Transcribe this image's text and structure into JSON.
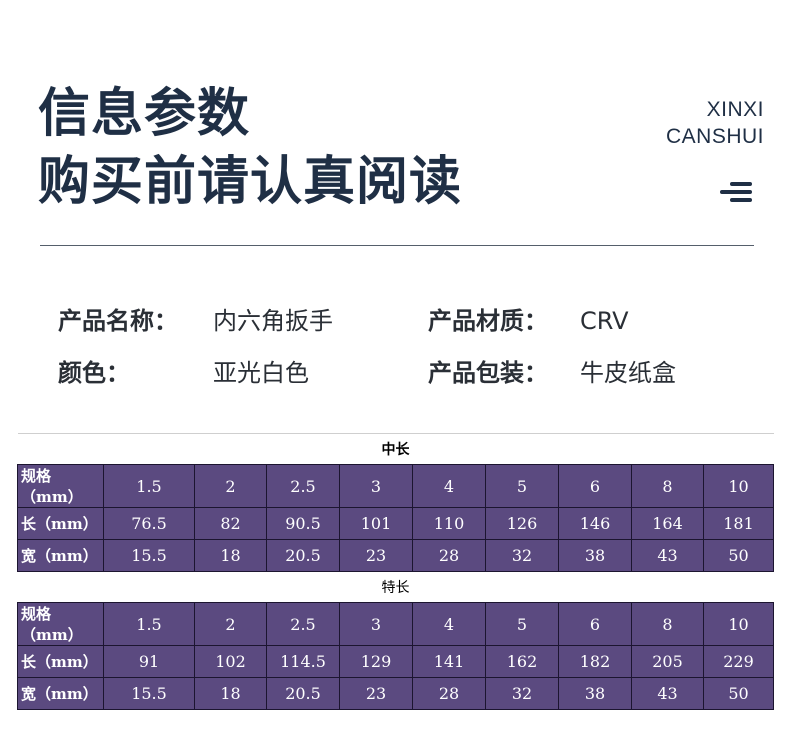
{
  "header": {
    "title_line1": "信息参数",
    "title_line2": "购买前请认真阅读",
    "en_line1": "XINXI",
    "en_line2": "CANSHUI",
    "menu_icon": "menu-lines-icon"
  },
  "info": {
    "name_label": "产品名称：",
    "name_value": "内六角扳手",
    "material_label": "产品材质：",
    "material_value": "CRV",
    "color_label": "颜色：",
    "color_value": "亚光白色",
    "package_label": "产品包装：",
    "package_value": "牛皮纸盒"
  },
  "colors": {
    "table_purple": "#5b4a80",
    "title_navy": "#1f2f45"
  },
  "tables": [
    {
      "caption": "中长",
      "rows": [
        {
          "label": "规格（mm）",
          "cells": [
            "1.5",
            "2",
            "2.5",
            "3",
            "4",
            "5",
            "6",
            "8",
            "10"
          ]
        },
        {
          "label": "长（mm）",
          "cells": [
            "76.5",
            "82",
            "90.5",
            "101",
            "110",
            "126",
            "146",
            "164",
            "181"
          ]
        },
        {
          "label": "宽（mm）",
          "cells": [
            "15.5",
            "18",
            "20.5",
            "23",
            "28",
            "32",
            "38",
            "43",
            "50"
          ]
        }
      ]
    },
    {
      "caption": "特长",
      "rows": [
        {
          "label": "规格（mm）",
          "cells": [
            "1.5",
            "2",
            "2.5",
            "3",
            "4",
            "5",
            "6",
            "8",
            "10"
          ]
        },
        {
          "label": "长（mm）",
          "cells": [
            "91",
            "102",
            "114.5",
            "129",
            "141",
            "162",
            "182",
            "205",
            "229"
          ]
        },
        {
          "label": "宽（mm）",
          "cells": [
            "15.5",
            "18",
            "20.5",
            "23",
            "28",
            "32",
            "38",
            "43",
            "50"
          ]
        }
      ]
    }
  ]
}
